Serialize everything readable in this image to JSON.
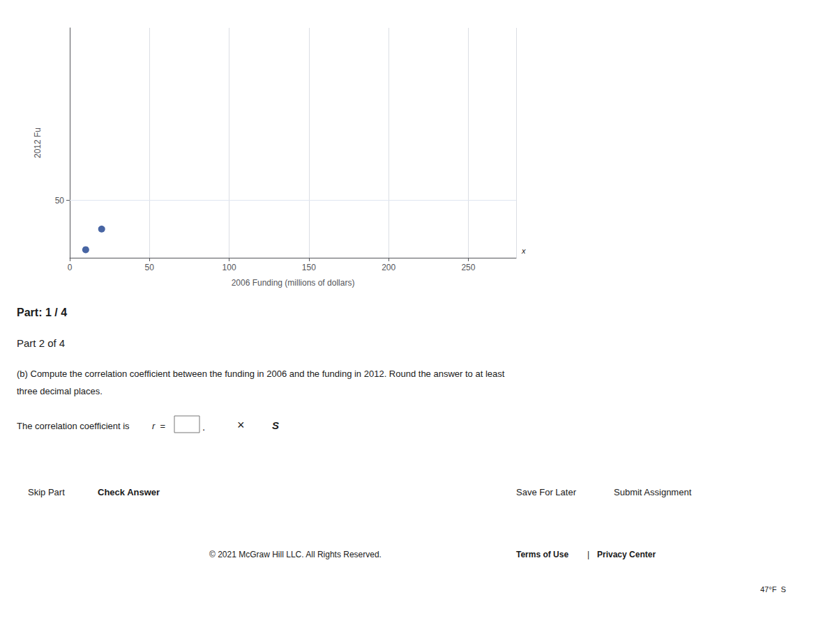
{
  "chart_data": {
    "type": "scatter",
    "x_label": "2006 Funding (millions of dollars)",
    "y_label": "2012 Fu",
    "x": [
      10,
      20
    ],
    "values": [
      7,
      25
    ],
    "color": "#1a3e8c",
    "xlim": [
      0,
      280
    ],
    "ylim": [
      0,
      200
    ],
    "xticks": [
      0,
      50,
      100,
      150,
      200,
      250
    ],
    "yticks": [
      50
    ],
    "grid": true,
    "annotations": [
      "x",
      "Part: 1 / 4",
      "Part 2 of 4",
      "(b) Compute the correlation coefficient between the funding in 2006 and the funding in 2012. Round the answer to at least",
      "three decimal places.",
      "The correlation coefficient is ",
      "r",
      " =",
      ".",
      "×",
      "S",
      "Skip Part",
      "Check Answer",
      "Save For Later",
      "Submit Assignment",
      "© 2021 McGraw Hill LLC. All Rights Reserved.",
      "Terms of Use",
      "|",
      "Privacy Center",
      "47°F  S"
    ]
  }
}
